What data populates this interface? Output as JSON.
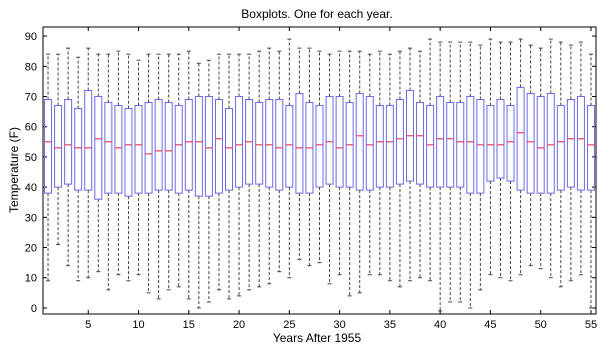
{
  "chart_data": {
    "type": "box",
    "title": "Boxplots. One for each year.",
    "xlabel": "Years After 1955",
    "ylabel": "Temperature (F)",
    "xlim": [
      0.5,
      55.5
    ],
    "ylim": [
      -2,
      93
    ],
    "xticks": [
      5,
      10,
      15,
      20,
      25,
      30,
      35,
      40,
      45,
      50,
      55
    ],
    "yticks": [
      0,
      10,
      20,
      30,
      40,
      50,
      60,
      70,
      80,
      90
    ],
    "grid": false,
    "legend": "none",
    "colors": {
      "box": "#6a6ae8",
      "median": "#e8415c",
      "whisker": "#444444",
      "axis": "#000000"
    },
    "years": [
      1,
      2,
      3,
      4,
      5,
      6,
      7,
      8,
      9,
      10,
      11,
      12,
      13,
      14,
      15,
      16,
      17,
      18,
      19,
      20,
      21,
      22,
      23,
      24,
      25,
      26,
      27,
      28,
      29,
      30,
      31,
      32,
      33,
      34,
      35,
      36,
      37,
      38,
      39,
      40,
      41,
      42,
      43,
      44,
      45,
      46,
      47,
      48,
      49,
      50,
      51,
      52,
      53,
      54,
      55
    ],
    "q1": [
      38,
      40,
      41,
      39,
      39,
      36,
      38,
      38,
      37,
      38,
      38,
      39,
      39,
      38,
      39,
      37,
      37,
      38,
      39,
      40,
      41,
      41,
      40,
      39,
      40,
      38,
      38,
      40,
      41,
      40,
      40,
      39,
      39,
      40,
      40,
      41,
      42,
      41,
      40,
      40,
      40,
      40,
      38,
      38,
      42,
      43,
      42,
      39,
      38,
      38,
      38,
      39,
      40,
      39,
      39
    ],
    "median": [
      55,
      53,
      54,
      53,
      53,
      56,
      55,
      53,
      54,
      54,
      51,
      52,
      52,
      54,
      55,
      55,
      53,
      56,
      53,
      54,
      55,
      54,
      54,
      53,
      54,
      53,
      53,
      54,
      55,
      53,
      54,
      57,
      54,
      55,
      55,
      56,
      57,
      57,
      54,
      56,
      56,
      55,
      55,
      54,
      54,
      54,
      55,
      58,
      55,
      53,
      54,
      55,
      56,
      56,
      54
    ],
    "q3": [
      69,
      67,
      69,
      66,
      72,
      70,
      68,
      67,
      66,
      67,
      68,
      69,
      68,
      67,
      69,
      70,
      70,
      69,
      66,
      70,
      69,
      68,
      69,
      69,
      67,
      71,
      68,
      67,
      70,
      70,
      68,
      71,
      70,
      67,
      67,
      69,
      72,
      68,
      67,
      70,
      68,
      68,
      70,
      69,
      67,
      69,
      67,
      73,
      71,
      70,
      71,
      67,
      69,
      70,
      67
    ],
    "low": [
      9,
      21,
      14,
      9,
      10,
      12,
      6,
      11,
      9,
      11,
      5,
      3,
      6,
      7,
      3,
      0,
      2,
      6,
      3,
      4,
      6,
      7,
      8,
      12,
      10,
      16,
      14,
      15,
      8,
      11,
      4,
      5,
      11,
      11,
      9,
      7,
      9,
      10,
      9,
      -1,
      2,
      2,
      0,
      6,
      11,
      10,
      9,
      11,
      14,
      13,
      10,
      7,
      9,
      11,
      0
    ],
    "high": [
      84,
      84,
      86,
      83,
      86,
      84,
      84,
      85,
      84,
      82,
      84,
      84,
      84,
      84,
      85,
      81,
      82,
      84,
      84,
      84,
      84,
      85,
      86,
      85,
      89,
      86,
      86,
      85,
      84,
      85,
      85,
      85,
      84,
      85,
      84,
      85,
      86,
      85,
      89,
      88,
      88,
      88,
      88,
      87,
      89,
      88,
      88,
      89,
      87,
      86,
      89,
      88,
      87,
      88,
      84
    ]
  }
}
